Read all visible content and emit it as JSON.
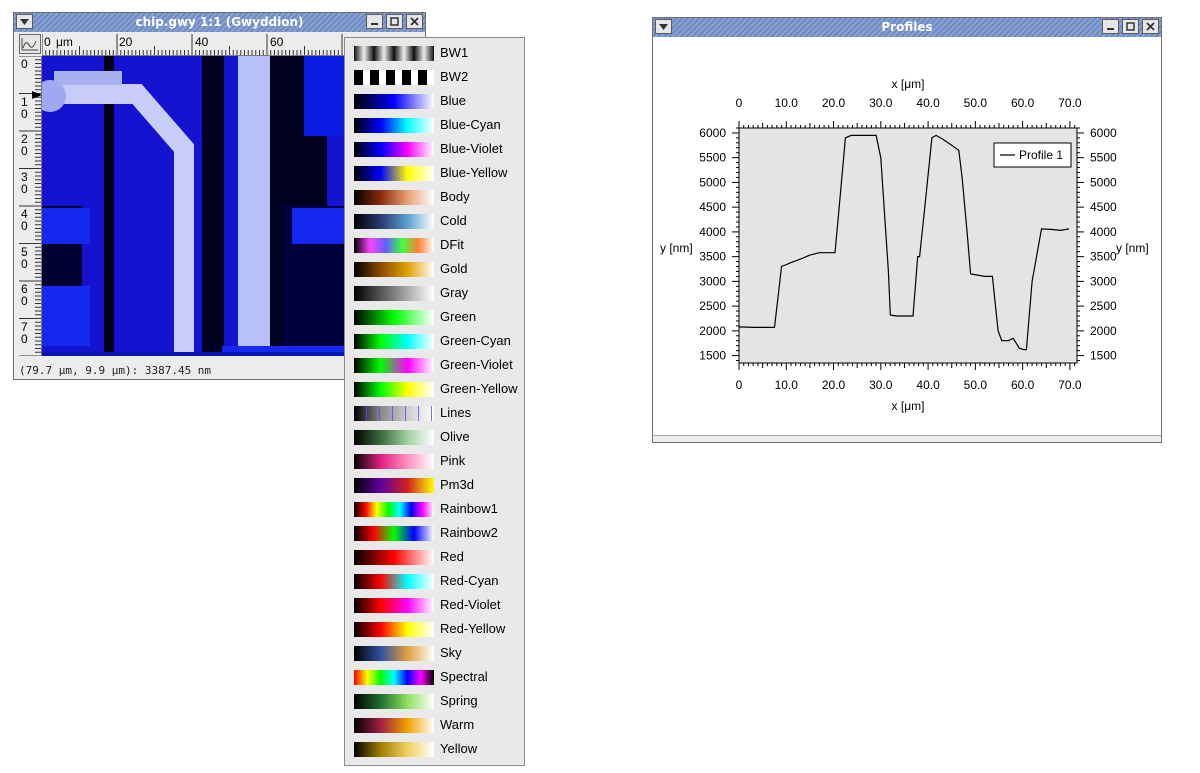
{
  "chip_window": {
    "title": "chip.gwy 1:1 (Gwyddion)",
    "ruler_unit": "μm",
    "ruler_h_labels": [
      "0",
      "20",
      "40",
      "60"
    ],
    "ruler_v_labels": [
      [
        "0"
      ],
      [
        "1",
        "0"
      ],
      [
        "2",
        "0"
      ],
      [
        "3",
        "0"
      ],
      [
        "4",
        "0"
      ],
      [
        "5",
        "0"
      ],
      [
        "6",
        "0"
      ],
      [
        "7",
        "0"
      ]
    ],
    "status_text": "(79.7 μm, 9.9 μm): 3387.45 nm"
  },
  "gradient_menu": {
    "items": [
      {
        "name": "BW1",
        "stops": [
          "#111",
          "#eee",
          "#111",
          "#eee",
          "#111",
          "#eee",
          "#111",
          "#eee",
          "#111"
        ]
      },
      {
        "name": "BW2",
        "stops": [
          "#000",
          "#000",
          "#fff",
          "#000",
          "#fff",
          "#000",
          "#fff",
          "#000",
          "#fff",
          "#000"
        ]
      },
      {
        "name": "Blue",
        "stops": [
          "#000000",
          "#0000ff",
          "#ffffff"
        ]
      },
      {
        "name": "Blue-Cyan",
        "stops": [
          "#000000",
          "#0000ff",
          "#00ffff",
          "#ffffff"
        ]
      },
      {
        "name": "Blue-Violet",
        "stops": [
          "#000000",
          "#0000ff",
          "#ff00ff",
          "#ffffff"
        ]
      },
      {
        "name": "Blue-Yellow",
        "stops": [
          "#000000",
          "#0000ff",
          "#ffff00",
          "#ffffff"
        ]
      },
      {
        "name": "Body",
        "stops": [
          "#000000",
          "#8b2a10",
          "#e6a070",
          "#ffffff"
        ]
      },
      {
        "name": "Cold",
        "stops": [
          "#000000",
          "#2a3a70",
          "#5aa0d0",
          "#ffffff"
        ]
      },
      {
        "name": "DFit",
        "stops": [
          "#000000",
          "#ff40ff",
          "#6060ff",
          "#40ff40",
          "#ff8030",
          "#ffffff"
        ]
      },
      {
        "name": "Gold",
        "stops": [
          "#000000",
          "#8a4a00",
          "#e0a000",
          "#ffffff"
        ]
      },
      {
        "name": "Gray",
        "stops": [
          "#000000",
          "#ffffff"
        ]
      },
      {
        "name": "Green",
        "stops": [
          "#000000",
          "#00ff00",
          "#ffffff"
        ]
      },
      {
        "name": "Green-Cyan",
        "stops": [
          "#000000",
          "#00ff00",
          "#00ffff",
          "#ffffff"
        ]
      },
      {
        "name": "Green-Violet",
        "stops": [
          "#000000",
          "#00ff00",
          "#ff00ff",
          "#ffffff"
        ]
      },
      {
        "name": "Green-Yellow",
        "stops": [
          "#000000",
          "#00ff00",
          "#ffff00",
          "#ffffff"
        ]
      },
      {
        "name": "Lines",
        "stops": [
          "#000000",
          "#777777",
          "#bbbbbb",
          "#ffffff"
        ]
      },
      {
        "name": "Olive",
        "stops": [
          "#000000",
          "#3a6a3a",
          "#a0d0a0",
          "#ffffff"
        ]
      },
      {
        "name": "Pink",
        "stops": [
          "#000000",
          "#e02080",
          "#ff90c0",
          "#ffffff"
        ]
      },
      {
        "name": "Pm3d",
        "stops": [
          "#000000",
          "#6000a0",
          "#d02020",
          "#ffff00"
        ]
      },
      {
        "name": "Rainbow1",
        "stops": [
          "#000000",
          "#ff0000",
          "#ffff00",
          "#00ff00",
          "#00ffff",
          "#0000ff",
          "#ff00ff",
          "#ffffff"
        ]
      },
      {
        "name": "Rainbow2",
        "stops": [
          "#000000",
          "#ff0000",
          "#00ff00",
          "#0000ff",
          "#ffffff"
        ]
      },
      {
        "name": "Red",
        "stops": [
          "#000000",
          "#ff0000",
          "#ffffff"
        ]
      },
      {
        "name": "Red-Cyan",
        "stops": [
          "#000000",
          "#ff0000",
          "#00ffff",
          "#ffffff"
        ]
      },
      {
        "name": "Red-Violet",
        "stops": [
          "#000000",
          "#ff0000",
          "#ff00ff",
          "#ffffff"
        ]
      },
      {
        "name": "Red-Yellow",
        "stops": [
          "#000000",
          "#ff0000",
          "#ffff00",
          "#ffffff"
        ]
      },
      {
        "name": "Sky",
        "stops": [
          "#000000",
          "#3050a0",
          "#e0a040",
          "#ffffff"
        ]
      },
      {
        "name": "Spectral",
        "stops": [
          "#ff0000",
          "#ffff00",
          "#00ff00",
          "#00ffff",
          "#0000ff",
          "#ff00ff",
          "#000000"
        ]
      },
      {
        "name": "Spring",
        "stops": [
          "#000000",
          "#207030",
          "#90e060",
          "#ffffff"
        ]
      },
      {
        "name": "Warm",
        "stops": [
          "#000000",
          "#a02040",
          "#f0a000",
          "#ffffff"
        ]
      },
      {
        "name": "Yellow",
        "stops": [
          "#000000",
          "#a08000",
          "#f0d060",
          "#ffffff"
        ]
      }
    ]
  },
  "profiles_window": {
    "title": "Profiles",
    "colors": {
      "plot_bg": "#e4e4e4",
      "line": "#000000"
    },
    "chart_data": {
      "type": "line",
      "xlabel": "x [μm]",
      "ylabel": "y [nm]",
      "xlim": [
        0,
        71.5
      ],
      "ylim": [
        1350,
        6100
      ],
      "x_ticks": [
        0,
        10,
        20,
        30,
        40,
        50,
        60,
        70
      ],
      "x_tick_labels": [
        "0",
        "10.0",
        "20.0",
        "30.0",
        "40.0",
        "50.0",
        "60.0",
        "70.0"
      ],
      "y_ticks": [
        1500,
        2000,
        2500,
        3000,
        3500,
        4000,
        4500,
        5000,
        5500,
        6000
      ],
      "y_tick_labels": [
        "1500",
        "2000",
        "2500",
        "3000",
        "3500",
        "4000",
        "4500",
        "5000",
        "5500",
        "6000"
      ],
      "legend_position": "top-right",
      "series": [
        {
          "name": "Profile 1",
          "x": [
            0,
            3,
            7.5,
            8.4,
            9.0,
            9.8,
            11.0,
            13,
            15,
            17,
            18,
            20.3,
            21,
            22.5,
            23.7,
            25,
            29,
            30,
            31.6,
            32,
            33.3,
            35,
            36.8,
            37.8,
            38.2,
            39.3,
            40.8,
            41.7,
            43,
            45,
            46.5,
            47.2,
            48.3,
            49,
            52,
            53.6,
            54.8,
            55.6,
            57,
            58,
            59.3,
            60.2,
            60.8,
            62,
            64,
            66,
            68,
            69.8
          ],
          "y": [
            2080,
            2070,
            2070,
            2800,
            3300,
            3330,
            3380,
            3450,
            3530,
            3580,
            3580,
            3580,
            4300,
            5900,
            5950,
            5950,
            5950,
            5500,
            3200,
            2320,
            2300,
            2300,
            2300,
            3500,
            3500,
            4500,
            5900,
            5950,
            5880,
            5750,
            5650,
            5100,
            3950,
            3150,
            3100,
            3100,
            2000,
            1800,
            1800,
            1850,
            1650,
            1620,
            1620,
            3000,
            4060,
            4050,
            4030,
            4060
          ]
        }
      ]
    }
  }
}
